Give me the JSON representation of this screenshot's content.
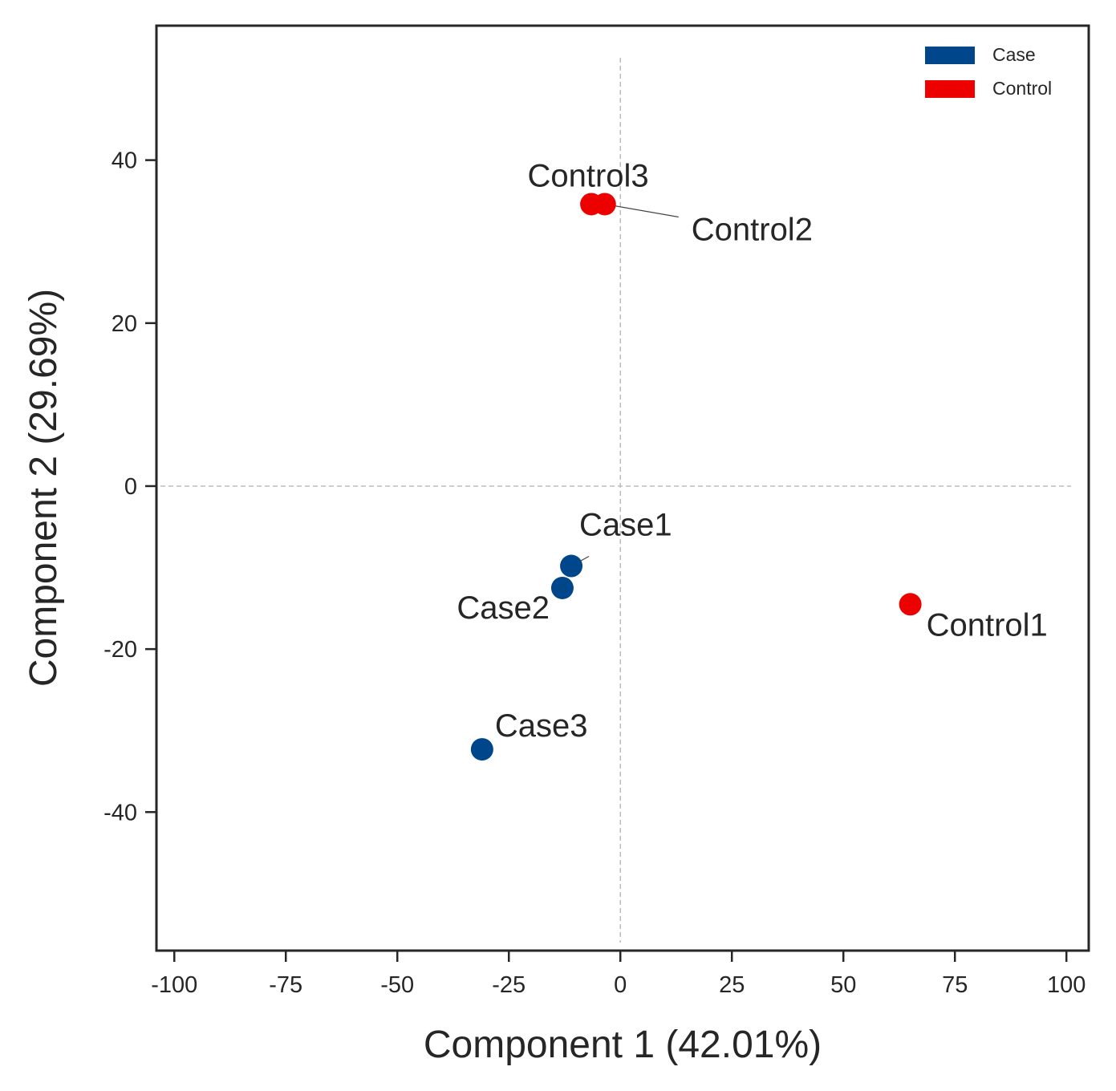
{
  "chart_data": {
    "type": "scatter",
    "title": "",
    "xlabel": "Component 1 (42.01%)",
    "ylabel": "Component 2 (29.69%)",
    "xlim": [
      -104,
      105
    ],
    "ylim": [
      -57,
      56.5
    ],
    "x_ticks": [
      -100,
      -75,
      -50,
      -25,
      0,
      25,
      50,
      75,
      100
    ],
    "x_tick_labels": [
      "-100",
      "-75",
      "-50",
      "-25",
      "0",
      "25",
      "50",
      "75",
      "100"
    ],
    "y_ticks": [
      -40,
      -20,
      0,
      20,
      40
    ],
    "y_tick_labels": [
      "-40",
      "-20",
      "0",
      "20",
      "40"
    ],
    "grid": false,
    "reference_lines": {
      "x": 0,
      "y": 0,
      "style": "dashed"
    },
    "legend": {
      "placement": "top-right",
      "entries": [
        {
          "label": "Case",
          "color": "#00468B"
        },
        {
          "label": "Control",
          "color": "#ED0000"
        }
      ]
    },
    "series": [
      {
        "name": "Case",
        "color": "#00468B",
        "points": [
          {
            "label": "Case1",
            "x": -11,
            "y": -9.8
          },
          {
            "label": "Case2",
            "x": -13,
            "y": -12.5
          },
          {
            "label": "Case3",
            "x": -31,
            "y": -32.3
          }
        ]
      },
      {
        "name": "Control",
        "color": "#ED0000",
        "points": [
          {
            "label": "Control1",
            "x": 65,
            "y": -14.5
          },
          {
            "label": "Control2",
            "x": -3.5,
            "y": 34.6
          },
          {
            "label": "Control3",
            "x": -6.5,
            "y": 34.6
          }
        ]
      }
    ]
  }
}
